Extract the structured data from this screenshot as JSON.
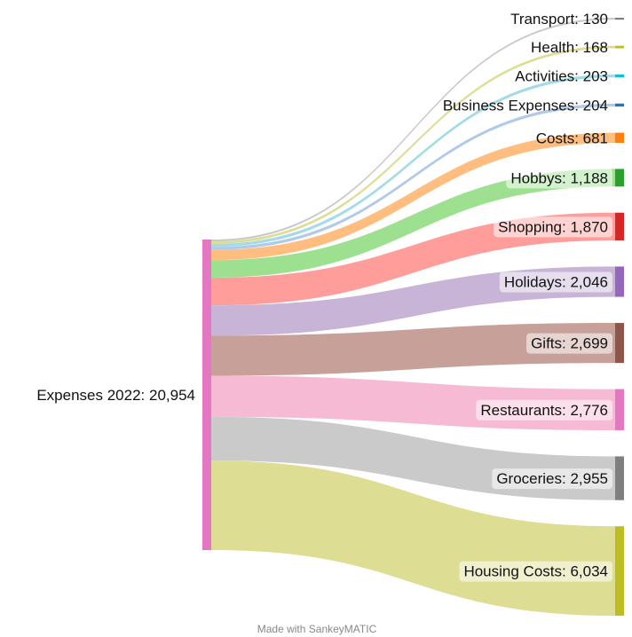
{
  "chart_data": {
    "type": "sankey",
    "title": "",
    "source": {
      "name": "Expenses 2022",
      "value": 20954,
      "label": "Expenses 2022: 20,954",
      "color": "#e377c2"
    },
    "targets": [
      {
        "name": "Transport",
        "value": 130,
        "label": "Transport: 130",
        "color": "#7f7f7f",
        "flow_color": "#c7c7c7"
      },
      {
        "name": "Health",
        "value": 168,
        "label": "Health: 168",
        "color": "#bcbd22",
        "flow_color": "#dbdb8d"
      },
      {
        "name": "Activities",
        "value": 203,
        "label": "Activities: 203",
        "color": "#17becf",
        "flow_color": "#9edae5"
      },
      {
        "name": "Business Expenses",
        "value": 204,
        "label": "Business Expenses: 204",
        "color": "#1f77b4",
        "flow_color": "#aec7e8"
      },
      {
        "name": "Costs",
        "value": 681,
        "label": "Costs: 681",
        "color": "#ff7f0e",
        "flow_color": "#ffbb78"
      },
      {
        "name": "Hobbys",
        "value": 1188,
        "label": "Hobbys: 1,188",
        "color": "#2ca02c",
        "flow_color": "#98df8a"
      },
      {
        "name": "Shopping",
        "value": 1870,
        "label": "Shopping: 1,870",
        "color": "#d62728",
        "flow_color": "#ff9896"
      },
      {
        "name": "Holidays",
        "value": 2046,
        "label": "Holidays: 2,046",
        "color": "#9467bd",
        "flow_color": "#c5b0d5"
      },
      {
        "name": "Gifts",
        "value": 2699,
        "label": "Gifts: 2,699",
        "color": "#8c564b",
        "flow_color": "#c49c94"
      },
      {
        "name": "Restaurants",
        "value": 2776,
        "label": "Restaurants: 2,776",
        "color": "#e377c2",
        "flow_color": "#f7b6d2"
      },
      {
        "name": "Groceries",
        "value": 2955,
        "label": "Groceries: 2,955",
        "color": "#7f7f7f",
        "flow_color": "#c7c7c7"
      },
      {
        "name": "Housing Costs",
        "value": 6034,
        "label": "Housing Costs: 6,034",
        "color": "#bcbd22",
        "flow_color": "#dbdb8d"
      }
    ]
  },
  "footer": {
    "credit": "Made with SankeyMATIC"
  }
}
